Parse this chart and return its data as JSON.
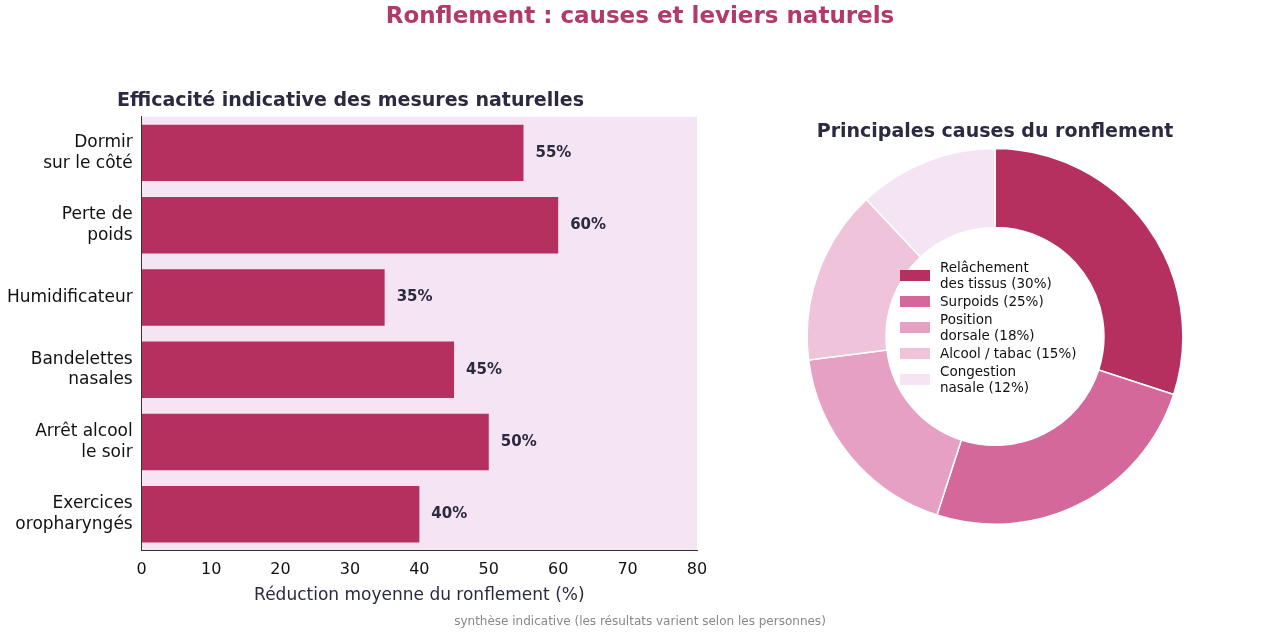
{
  "chart_data": [
    {
      "type": "bar",
      "orientation": "horizontal",
      "title": "Efficacité indicative des mesures naturelles",
      "xlabel": "Réduction moyenne du ronflement (%)",
      "categories": [
        "Dormir\nsur le côté",
        "Perte de\npoids",
        "Humidificateur",
        "Bandelettes\nnasales",
        "Arrêt alcool\nle soir",
        "Exercices\noropharyngés"
      ],
      "values": [
        55,
        60,
        35,
        45,
        50,
        40
      ],
      "value_labels": [
        "55%",
        "60%",
        "35%",
        "45%",
        "50%",
        "40%"
      ],
      "color": "#b5305f",
      "xlim": [
        0,
        80
      ],
      "xticks": [
        0,
        10,
        20,
        30,
        40,
        50,
        60,
        70,
        80
      ],
      "grid": false,
      "legend": false,
      "annotations": [
        "Ronflement : causes et leviers naturels"
      ]
    },
    {
      "type": "donut",
      "title": "Principales causes du ronflement",
      "categories": [
        "Relâchement\ndes tissus (30%)",
        "Surpoids (25%)",
        "Position\ndorsale (18%)",
        "Alcool / tabac (15%)",
        "Congestion\nnasale (12%)"
      ],
      "values": [
        30,
        25,
        18,
        15,
        12
      ],
      "colors": [
        "#b5305f",
        "#d4689a",
        "#e6a0c4",
        "#efc3d9",
        "#f5e4f3"
      ],
      "legend": "center",
      "annotations": [
        "synthèse indicative (les résultats varient selon les personnes)"
      ]
    }
  ]
}
